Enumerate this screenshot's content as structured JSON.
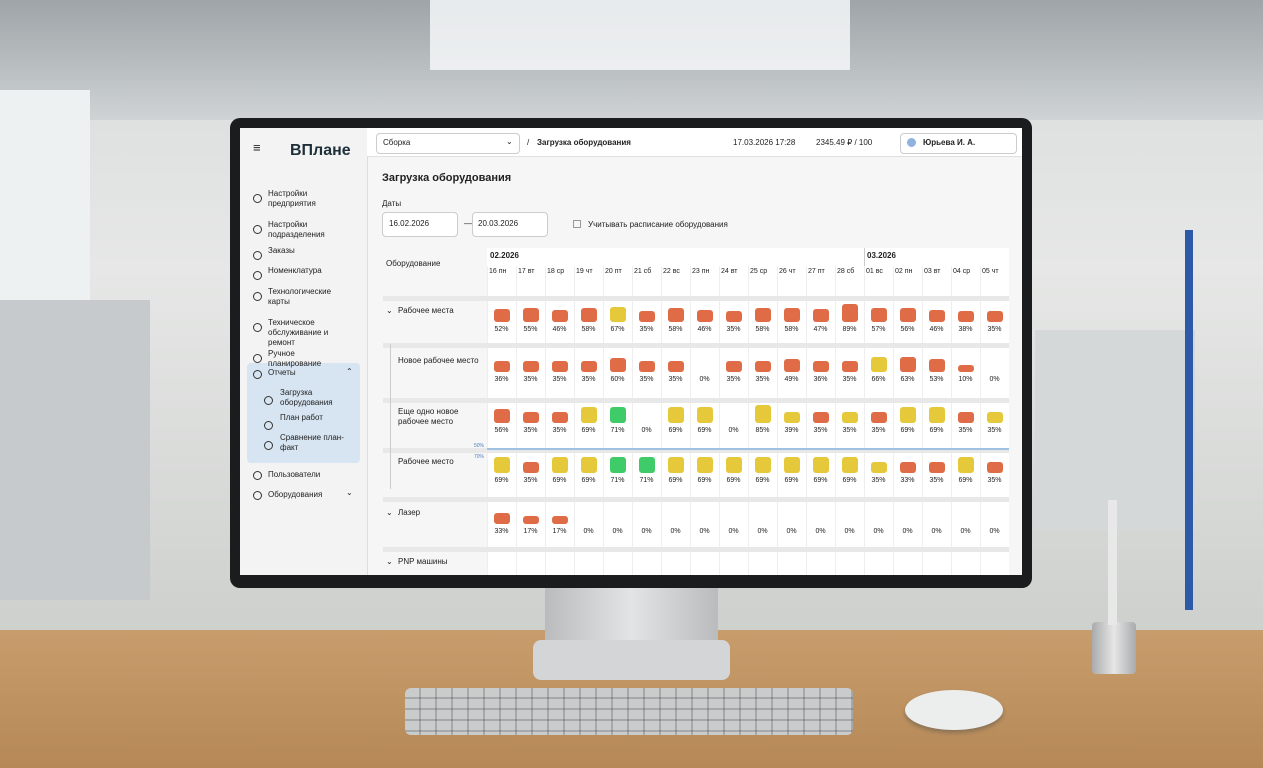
{
  "header": {
    "logo": "ВПлане",
    "project": "Сборка",
    "separator": "/",
    "breadcrumb": "Загрузка оборудования",
    "datetime": "17.03.2026 17:28",
    "balance": "2345.49 ₽ / 100",
    "user": "Юрьева И. А."
  },
  "sidebar": {
    "items": [
      "Настройки предприятия",
      "Настройки подразделения",
      "Заказы",
      "Номенклатура",
      "Технологические карты",
      "Техническое обслуживание и ремонт",
      "Ручное планирование"
    ],
    "reports": "Отчеты",
    "report_items": [
      "Загрузка оборудования",
      "План работ",
      "Сравнение план-факт"
    ],
    "bottom_items": [
      "Пользователи",
      "Оборудования"
    ]
  },
  "page": {
    "title": "Загрузка оборудования",
    "dates_label": "Даты",
    "date_from": "16.02.2026",
    "dash": "—",
    "date_to": "20.03.2026",
    "schedule_checkbox": "Учитывать расписание оборудования"
  },
  "grid": {
    "equipment_header": "Оборудование",
    "months": [
      "02.2026",
      "03.2026"
    ],
    "days": [
      "16 пн",
      "17 вт",
      "18 ср",
      "19 чт",
      "20 пт",
      "21 сб",
      "22 вс",
      "23 пн",
      "24 вт",
      "25 ср",
      "26 чт",
      "27 пт",
      "28 сб",
      "01 вс",
      "02 пн",
      "03 вт",
      "04 ср",
      "05 чт"
    ],
    "threshold_labels": [
      "50%",
      "70%"
    ],
    "colors": {
      "orange": "#df6c47",
      "yellow": "#e6c93a",
      "green": "#3fcc68"
    },
    "rows": [
      {
        "name": "Рабочее места",
        "group": true,
        "loads": [
          "52%",
          "55%",
          "46%",
          "58%",
          "67%",
          "35%",
          "58%",
          "46%",
          "35%",
          "58%",
          "58%",
          "47%",
          "89%",
          "57%",
          "56%",
          "46%",
          "38%",
          "35%"
        ],
        "levels": [
          "orange",
          "orange",
          "orange",
          "orange",
          "yellow",
          "orange",
          "orange",
          "orange",
          "orange",
          "orange",
          "orange",
          "orange",
          "orange",
          "orange",
          "orange",
          "orange",
          "orange",
          "orange"
        ]
      },
      {
        "name": "Новое рабочее место",
        "group": false,
        "loads": [
          "36%",
          "35%",
          "35%",
          "35%",
          "60%",
          "35%",
          "35%",
          "0%",
          "35%",
          "35%",
          "49%",
          "36%",
          "35%",
          "66%",
          "63%",
          "53%",
          "10%",
          "0%"
        ],
        "levels": [
          "orange",
          "orange",
          "orange",
          "orange",
          "orange",
          "orange",
          "orange",
          null,
          "orange",
          "orange",
          "orange",
          "orange",
          "orange",
          "yellow",
          "orange",
          "orange",
          "orange",
          null
        ]
      },
      {
        "name": "Еще одно новое рабочее место",
        "group": false,
        "loads": [
          "56%",
          "35%",
          "35%",
          "69%",
          "71%",
          "0%",
          "69%",
          "69%",
          "0%",
          "85%",
          "39%",
          "35%",
          "35%",
          "35%",
          "69%",
          "69%",
          "35%",
          "35%"
        ],
        "levels": [
          "orange",
          "orange",
          "orange",
          "yellow",
          "green",
          null,
          "yellow",
          "yellow",
          null,
          "yellow",
          "yellow",
          "orange",
          "yellow",
          "orange",
          "yellow",
          "yellow",
          "orange",
          "yellow"
        ]
      },
      {
        "name": "Рабочее место",
        "group": false,
        "loads": [
          "69%",
          "35%",
          "69%",
          "69%",
          "71%",
          "71%",
          "69%",
          "69%",
          "69%",
          "69%",
          "69%",
          "69%",
          "69%",
          "35%",
          "33%",
          "35%",
          "69%",
          "35%"
        ],
        "levels": [
          "yellow",
          "orange",
          "yellow",
          "yellow",
          "green",
          "green",
          "yellow",
          "yellow",
          "yellow",
          "yellow",
          "yellow",
          "yellow",
          "yellow",
          "yellow",
          "orange",
          "orange",
          "yellow",
          "orange"
        ]
      },
      {
        "name": "Лазер",
        "group": true,
        "loads": [
          "33%",
          "17%",
          "17%",
          "0%",
          "0%",
          "0%",
          "0%",
          "0%",
          "0%",
          "0%",
          "0%",
          "0%",
          "0%",
          "0%",
          "0%",
          "0%",
          "0%",
          "0%"
        ],
        "levels": [
          "orange",
          "orange",
          "orange",
          null,
          null,
          null,
          null,
          null,
          null,
          null,
          null,
          null,
          null,
          null,
          null,
          null,
          null,
          null
        ]
      },
      {
        "name": "PNP машины",
        "group": true
      }
    ]
  }
}
